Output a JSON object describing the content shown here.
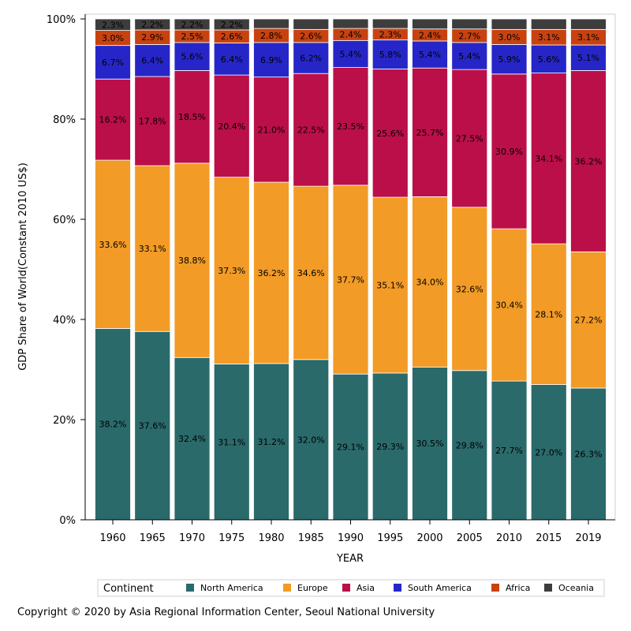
{
  "chart_data": {
    "type": "bar",
    "stacked": true,
    "categories": [
      "1960",
      "1965",
      "1970",
      "1975",
      "1980",
      "1985",
      "1990",
      "1995",
      "2000",
      "2005",
      "2010",
      "2015",
      "2019"
    ],
    "series": [
      {
        "name": "North America",
        "color": "#2a6a6b",
        "values": [
          38.2,
          37.6,
          32.4,
          31.1,
          31.2,
          32.0,
          29.1,
          29.3,
          30.5,
          29.8,
          27.7,
          27.0,
          26.3
        ]
      },
      {
        "name": "Europe",
        "color": "#f29b26",
        "values": [
          33.6,
          33.1,
          38.8,
          37.3,
          36.2,
          34.6,
          37.7,
          35.1,
          34.0,
          32.6,
          30.4,
          28.1,
          27.2
        ]
      },
      {
        "name": "Asia",
        "color": "#bb0f49",
        "values": [
          16.2,
          17.8,
          18.5,
          20.4,
          21.0,
          22.5,
          23.5,
          25.6,
          25.7,
          27.5,
          30.9,
          34.1,
          36.2
        ]
      },
      {
        "name": "South America",
        "color": "#2626c8",
        "values": [
          6.7,
          6.4,
          5.6,
          6.4,
          6.9,
          6.2,
          5.4,
          5.8,
          5.4,
          5.4,
          5.9,
          5.6,
          5.1
        ]
      },
      {
        "name": "Africa",
        "color": "#c8420f",
        "values": [
          3.0,
          2.9,
          2.5,
          2.6,
          2.8,
          2.6,
          2.4,
          2.3,
          2.4,
          2.7,
          3.0,
          3.1,
          3.1
        ]
      },
      {
        "name": "Oceania",
        "color": "#3d3d3d",
        "values": [
          2.3,
          2.2,
          2.2,
          2.2,
          null,
          null,
          null,
          null,
          null,
          null,
          null,
          null,
          null
        ]
      }
    ],
    "data_labels": [
      [
        "38.2%",
        "33.6%",
        "16.2%",
        "6.7%",
        "3.0%",
        "2.3%"
      ],
      [
        "37.6%",
        "33.1%",
        "17.8%",
        "6.4%",
        "2.9%",
        "2.2%"
      ],
      [
        "32.4%",
        "38.8%",
        "18.5%",
        "5.6%",
        "2.5%",
        "2.2%"
      ],
      [
        "31.1%",
        "37.3%",
        "20.4%",
        "6.4%",
        "2.6%",
        "2.2%"
      ],
      [
        "31.2%",
        "36.2%",
        "21.0%",
        "6.9%",
        "2.8%",
        ""
      ],
      [
        "32.0%",
        "34.6%",
        "22.5%",
        "6.2%",
        "2.6%",
        ""
      ],
      [
        "29.1%",
        "37.7%",
        "23.5%",
        "5.4%",
        "2.4%",
        ""
      ],
      [
        "29.3%",
        "35.1%",
        "25.6%",
        "5.8%",
        "2.3%",
        ""
      ],
      [
        "30.5%",
        "34.0%",
        "25.7%",
        "5.4%",
        "2.4%",
        ""
      ],
      [
        "29.8%",
        "32.6%",
        "27.5%",
        "5.4%",
        "2.7%",
        ""
      ],
      [
        "27.7%",
        "30.4%",
        "30.9%",
        "5.9%",
        "3.0%",
        ""
      ],
      [
        "27.0%",
        "28.1%",
        "34.1%",
        "5.6%",
        "3.1%",
        ""
      ],
      [
        "26.3%",
        "27.2%",
        "36.2%",
        "5.1%",
        "3.1%",
        ""
      ]
    ],
    "xlabel": "YEAR",
    "ylabel": "GDP Share of World(Constant 2010 US$)",
    "ylim": [
      0,
      100
    ],
    "yticks": [
      "0%",
      "20%",
      "40%",
      "60%",
      "80%",
      "100%"
    ],
    "legend": {
      "title": "Continent",
      "placement": "bottom"
    },
    "grid": false
  },
  "copyright": "Copyright © 2020 by Asia Regional Information Center, Seoul National University"
}
